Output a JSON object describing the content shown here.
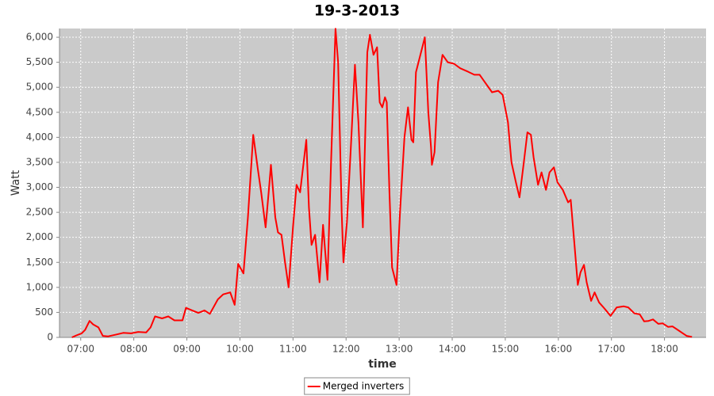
{
  "chart_data": {
    "type": "line",
    "title": "19-3-2013",
    "x_label": "time",
    "y_label": "Watt",
    "x": [
      "06:50",
      "06:55",
      "07:01",
      "07:05",
      "07:10",
      "07:14",
      "07:20",
      "07:25",
      "07:31",
      "07:41",
      "07:48",
      "07:57",
      "08:05",
      "08:14",
      "08:19",
      "08:24",
      "08:32",
      "08:39",
      "08:46",
      "08:55",
      "08:59",
      "09:06",
      "09:13",
      "09:20",
      "09:26",
      "09:35",
      "09:41",
      "09:49",
      "09:54",
      "09:58",
      "10:04",
      "10:09",
      "10:15",
      "10:20",
      "10:24",
      "10:29",
      "10:33",
      "10:35",
      "10:40",
      "10:43",
      "10:47",
      "10:51",
      "10:55",
      "11:00",
      "11:04",
      "11:08",
      "11:15",
      "11:18",
      "11:21",
      "11:25",
      "11:30",
      "11:34",
      "11:39",
      "11:43",
      "11:48",
      "11:51",
      "11:55",
      "11:57",
      "12:01",
      "12:06",
      "12:10",
      "12:14",
      "12:19",
      "12:24",
      "12:27",
      "12:31",
      "12:35",
      "12:38",
      "12:41",
      "12:44",
      "12:46",
      "12:49",
      "12:52",
      "12:57",
      "13:01",
      "13:06",
      "13:10",
      "13:14",
      "13:16",
      "13:19",
      "13:24",
      "13:29",
      "13:33",
      "13:36",
      "13:37",
      "13:40",
      "13:44",
      "13:49",
      "13:55",
      "14:02",
      "14:09",
      "14:18",
      "14:25",
      "14:31",
      "14:37",
      "14:45",
      "14:52",
      "14:57",
      "15:03",
      "15:07",
      "15:12",
      "15:16",
      "15:21",
      "15:25",
      "15:29",
      "15:32",
      "15:37",
      "15:41",
      "15:46",
      "15:50",
      "15:55",
      "15:59",
      "16:05",
      "16:11",
      "16:14",
      "16:18",
      "16:22",
      "16:25",
      "16:29",
      "16:32",
      "16:37",
      "16:41",
      "16:46",
      "16:52",
      "16:59",
      "17:06",
      "17:14",
      "17:19",
      "17:26",
      "17:32",
      "17:37",
      "17:42",
      "17:47",
      "17:53",
      "17:58",
      "18:04",
      "18:09",
      "18:15",
      "18:20",
      "18:25",
      "18:31"
    ],
    "series": [
      {
        "name": "Merged inverters",
        "color": "#ff0000",
        "values": [
          0,
          40,
          80,
          150,
          330,
          260,
          200,
          30,
          20,
          60,
          90,
          80,
          110,
          100,
          200,
          420,
          380,
          420,
          340,
          340,
          590,
          540,
          490,
          540,
          470,
          760,
          860,
          900,
          650,
          1470,
          1280,
          2400,
          4050,
          3400,
          2900,
          2200,
          3000,
          3450,
          2400,
          2100,
          2050,
          1500,
          1000,
          2200,
          3050,
          2900,
          3950,
          2600,
          1850,
          2050,
          1100,
          2250,
          1150,
          3500,
          6170,
          5500,
          2500,
          1500,
          2300,
          4000,
          5450,
          4300,
          2200,
          5700,
          6050,
          5650,
          5800,
          4700,
          4600,
          4800,
          4700,
          2900,
          1400,
          1050,
          2500,
          4000,
          4600,
          3950,
          3900,
          5300,
          5650,
          6000,
          4500,
          3800,
          3450,
          3700,
          5100,
          5650,
          5500,
          5470,
          5380,
          5310,
          5250,
          5250,
          5100,
          4900,
          4930,
          4850,
          4300,
          3500,
          3100,
          2800,
          3500,
          4100,
          4050,
          3600,
          3050,
          3300,
          2950,
          3300,
          3400,
          3100,
          2950,
          2700,
          2750,
          1900,
          1050,
          1300,
          1450,
          1100,
          730,
          900,
          700,
          580,
          430,
          600,
          620,
          600,
          480,
          460,
          320,
          330,
          360,
          270,
          280,
          210,
          220,
          150,
          90,
          30,
          10
        ]
      }
    ],
    "xlim": [
      "06:36",
      "18:47"
    ],
    "xticks": [
      "07:00",
      "08:00",
      "09:00",
      "10:00",
      "11:00",
      "12:00",
      "13:00",
      "14:00",
      "15:00",
      "16:00",
      "17:00",
      "18:00"
    ],
    "ylim": [
      0,
      6175
    ],
    "yticks": [
      0,
      500,
      {
        "value": 1000,
        "label": "1,000"
      },
      {
        "value": 1500,
        "label": "1,500"
      },
      {
        "value": 2000,
        "label": "2,000"
      },
      {
        "value": 2500,
        "label": "2,500"
      },
      {
        "value": 3000,
        "label": "3,000"
      },
      {
        "value": 3500,
        "label": "3,500"
      },
      {
        "value": 4000,
        "label": "4,000"
      },
      {
        "value": 4500,
        "label": "4,500"
      },
      {
        "value": 5000,
        "label": "5,000"
      },
      {
        "value": 5500,
        "label": "5,500"
      },
      {
        "value": 6000,
        "label": "6,000"
      }
    ],
    "grid": true,
    "legend": "bottom"
  }
}
